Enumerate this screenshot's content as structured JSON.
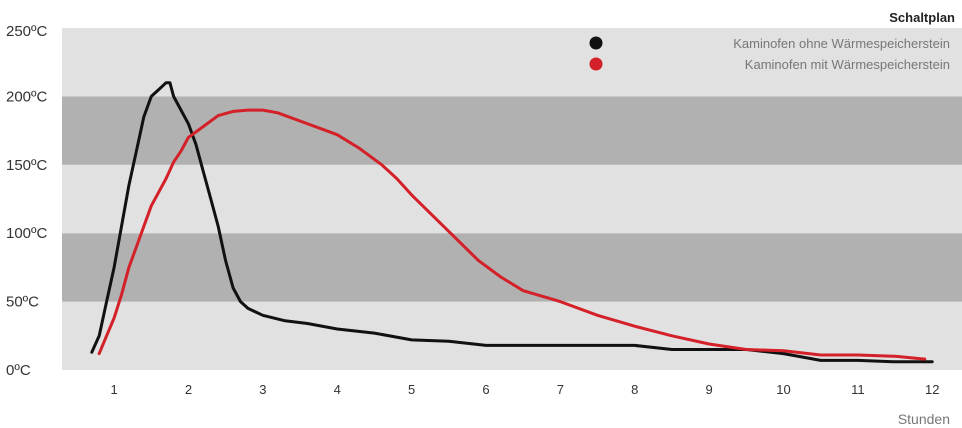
{
  "chart_data": {
    "type": "line",
    "title": "",
    "xlabel": "Stunden",
    "ylabel": "",
    "xlim": [
      0.3,
      12.4
    ],
    "ylim": [
      0,
      250
    ],
    "x_ticks": [
      1,
      2,
      3,
      4,
      5,
      6,
      7,
      8,
      9,
      10,
      11,
      12
    ],
    "x_tick_labels": [
      "1",
      "2",
      "3",
      "4",
      "5",
      "6",
      "7",
      "8",
      "9",
      "10",
      "11",
      "12"
    ],
    "y_ticks": [
      0,
      50,
      100,
      150,
      200,
      250
    ],
    "y_tick_labels": [
      "0ºC",
      "50ºC",
      "100ºC",
      "150ºC",
      "200ºC",
      "250ºC"
    ],
    "bands": [
      {
        "from": 0,
        "to": 50,
        "color": "#e1e1e1"
      },
      {
        "from": 50,
        "to": 100,
        "color": "#b1b1b1"
      },
      {
        "from": 100,
        "to": 150,
        "color": "#e1e1e1"
      },
      {
        "from": 150,
        "to": 200,
        "color": "#b1b1b1"
      },
      {
        "from": 200,
        "to": 250,
        "color": "#e1e1e1"
      }
    ],
    "legend": {
      "title": "Schaltplan",
      "placement": "top-right"
    },
    "series": [
      {
        "name": "Kaminofen ohne Wärmespeicherstein",
        "color": "#111111",
        "points": [
          [
            0.7,
            13
          ],
          [
            0.8,
            25
          ],
          [
            0.9,
            50
          ],
          [
            1.0,
            75
          ],
          [
            1.1,
            105
          ],
          [
            1.2,
            135
          ],
          [
            1.3,
            160
          ],
          [
            1.4,
            185
          ],
          [
            1.5,
            200
          ],
          [
            1.6,
            205
          ],
          [
            1.7,
            210
          ],
          [
            1.75,
            210
          ],
          [
            1.8,
            200
          ],
          [
            1.9,
            190
          ],
          [
            2.0,
            180
          ],
          [
            2.1,
            165
          ],
          [
            2.2,
            145
          ],
          [
            2.3,
            125
          ],
          [
            2.4,
            105
          ],
          [
            2.5,
            80
          ],
          [
            2.6,
            60
          ],
          [
            2.7,
            50
          ],
          [
            2.8,
            45
          ],
          [
            3.0,
            40
          ],
          [
            3.3,
            36
          ],
          [
            3.6,
            34
          ],
          [
            4.0,
            30
          ],
          [
            4.5,
            27
          ],
          [
            5.0,
            22
          ],
          [
            5.5,
            21
          ],
          [
            6.0,
            18
          ],
          [
            7.0,
            18
          ],
          [
            8.0,
            18
          ],
          [
            8.5,
            15
          ],
          [
            9.0,
            15
          ],
          [
            9.5,
            15
          ],
          [
            10.0,
            12
          ],
          [
            10.5,
            7
          ],
          [
            11.0,
            7
          ],
          [
            11.5,
            6
          ],
          [
            12.0,
            6
          ]
        ]
      },
      {
        "name": "Kaminofen mit Wärmespeicherstein",
        "color": "#d42028",
        "points": [
          [
            0.8,
            12
          ],
          [
            0.9,
            25
          ],
          [
            1.0,
            38
          ],
          [
            1.1,
            55
          ],
          [
            1.2,
            75
          ],
          [
            1.3,
            90
          ],
          [
            1.4,
            105
          ],
          [
            1.5,
            120
          ],
          [
            1.6,
            130
          ],
          [
            1.7,
            140
          ],
          [
            1.8,
            152
          ],
          [
            1.9,
            160
          ],
          [
            2.0,
            170
          ],
          [
            2.2,
            178
          ],
          [
            2.4,
            186
          ],
          [
            2.6,
            189
          ],
          [
            2.8,
            190
          ],
          [
            3.0,
            190
          ],
          [
            3.2,
            188
          ],
          [
            3.5,
            182
          ],
          [
            3.8,
            176
          ],
          [
            4.0,
            172
          ],
          [
            4.3,
            162
          ],
          [
            4.6,
            150
          ],
          [
            4.8,
            140
          ],
          [
            5.0,
            128
          ],
          [
            5.3,
            112
          ],
          [
            5.6,
            96
          ],
          [
            5.9,
            80
          ],
          [
            6.2,
            68
          ],
          [
            6.5,
            58
          ],
          [
            7.0,
            50
          ],
          [
            7.5,
            40
          ],
          [
            8.0,
            32
          ],
          [
            8.5,
            25
          ],
          [
            9.0,
            19
          ],
          [
            9.5,
            15
          ],
          [
            10.0,
            14
          ],
          [
            10.5,
            11
          ],
          [
            11.0,
            11
          ],
          [
            11.5,
            10
          ],
          [
            11.9,
            8
          ]
        ]
      }
    ]
  }
}
